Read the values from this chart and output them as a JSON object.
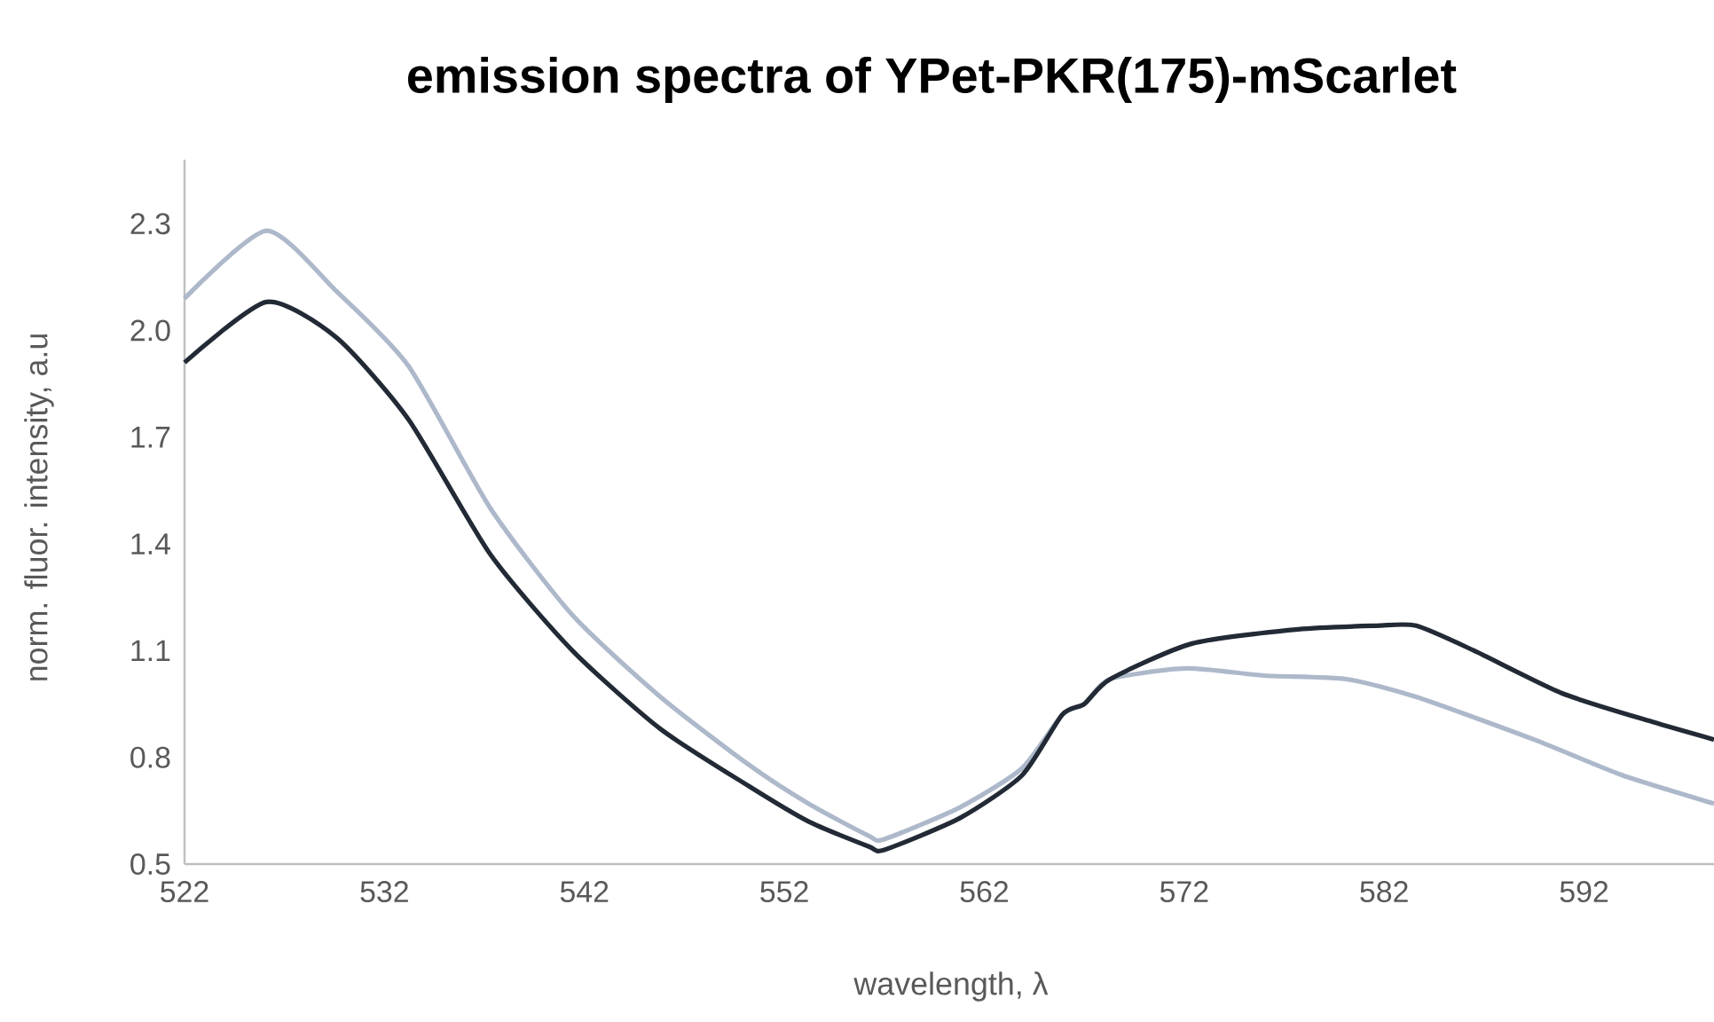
{
  "chart_data": {
    "type": "line",
    "title": "emission spectra of YPet-PKR(175)-mScarlet",
    "xlabel": "wavelength, λ",
    "ylabel": "norm. fluor. intensity, a.u",
    "xlim": [
      522,
      598.5
    ],
    "xticks": [
      522,
      532,
      542,
      552,
      562,
      572,
      582,
      592
    ],
    "ylim": [
      0.5,
      2.48
    ],
    "yticks": [
      0.5,
      0.8,
      1.1,
      1.4,
      1.7,
      {
        "value": 2,
        "label": "2.0"
      },
      2.3
    ],
    "grid": false,
    "marker": "none",
    "line_style": "solid",
    "series": [
      {
        "color": "#adb9ca",
        "x": [
          522,
          526.1,
          529.6,
          533.2,
          537.3,
          541.4,
          545.8,
          550.2,
          553.2,
          556.2,
          557,
          560.8,
          563.9,
          565.9,
          567,
          568.3,
          572.1,
          576,
          580.1,
          583.6,
          589.5,
          593.9,
          598.5
        ],
        "values": [
          2.09,
          2.28,
          2.11,
          1.9,
          1.5,
          1.2,
          0.97,
          0.78,
          0.67,
          0.58,
          0.57,
          0.66,
          0.77,
          0.92,
          0.95,
          1.02,
          1.05,
          1.03,
          1.02,
          0.97,
          0.85,
          0.75,
          0.67
        ]
      },
      {
        "color": "#222a35",
        "x": [
          522,
          526.1,
          529.6,
          533.2,
          537.3,
          541.4,
          545.8,
          550.2,
          553.2,
          556.2,
          557,
          560.8,
          563.9,
          565.9,
          567,
          568.3,
          572.4,
          577.7,
          581.6,
          583.6,
          586.5,
          590.9,
          595.4,
          598.5
        ],
        "values": [
          1.91,
          2.08,
          1.98,
          1.75,
          1.37,
          1.1,
          0.88,
          0.72,
          0.62,
          0.55,
          0.54,
          0.63,
          0.75,
          0.92,
          0.95,
          1.02,
          1.12,
          1.16,
          1.17,
          1.17,
          1.1,
          0.98,
          0.9,
          0.85
        ]
      }
    ]
  }
}
